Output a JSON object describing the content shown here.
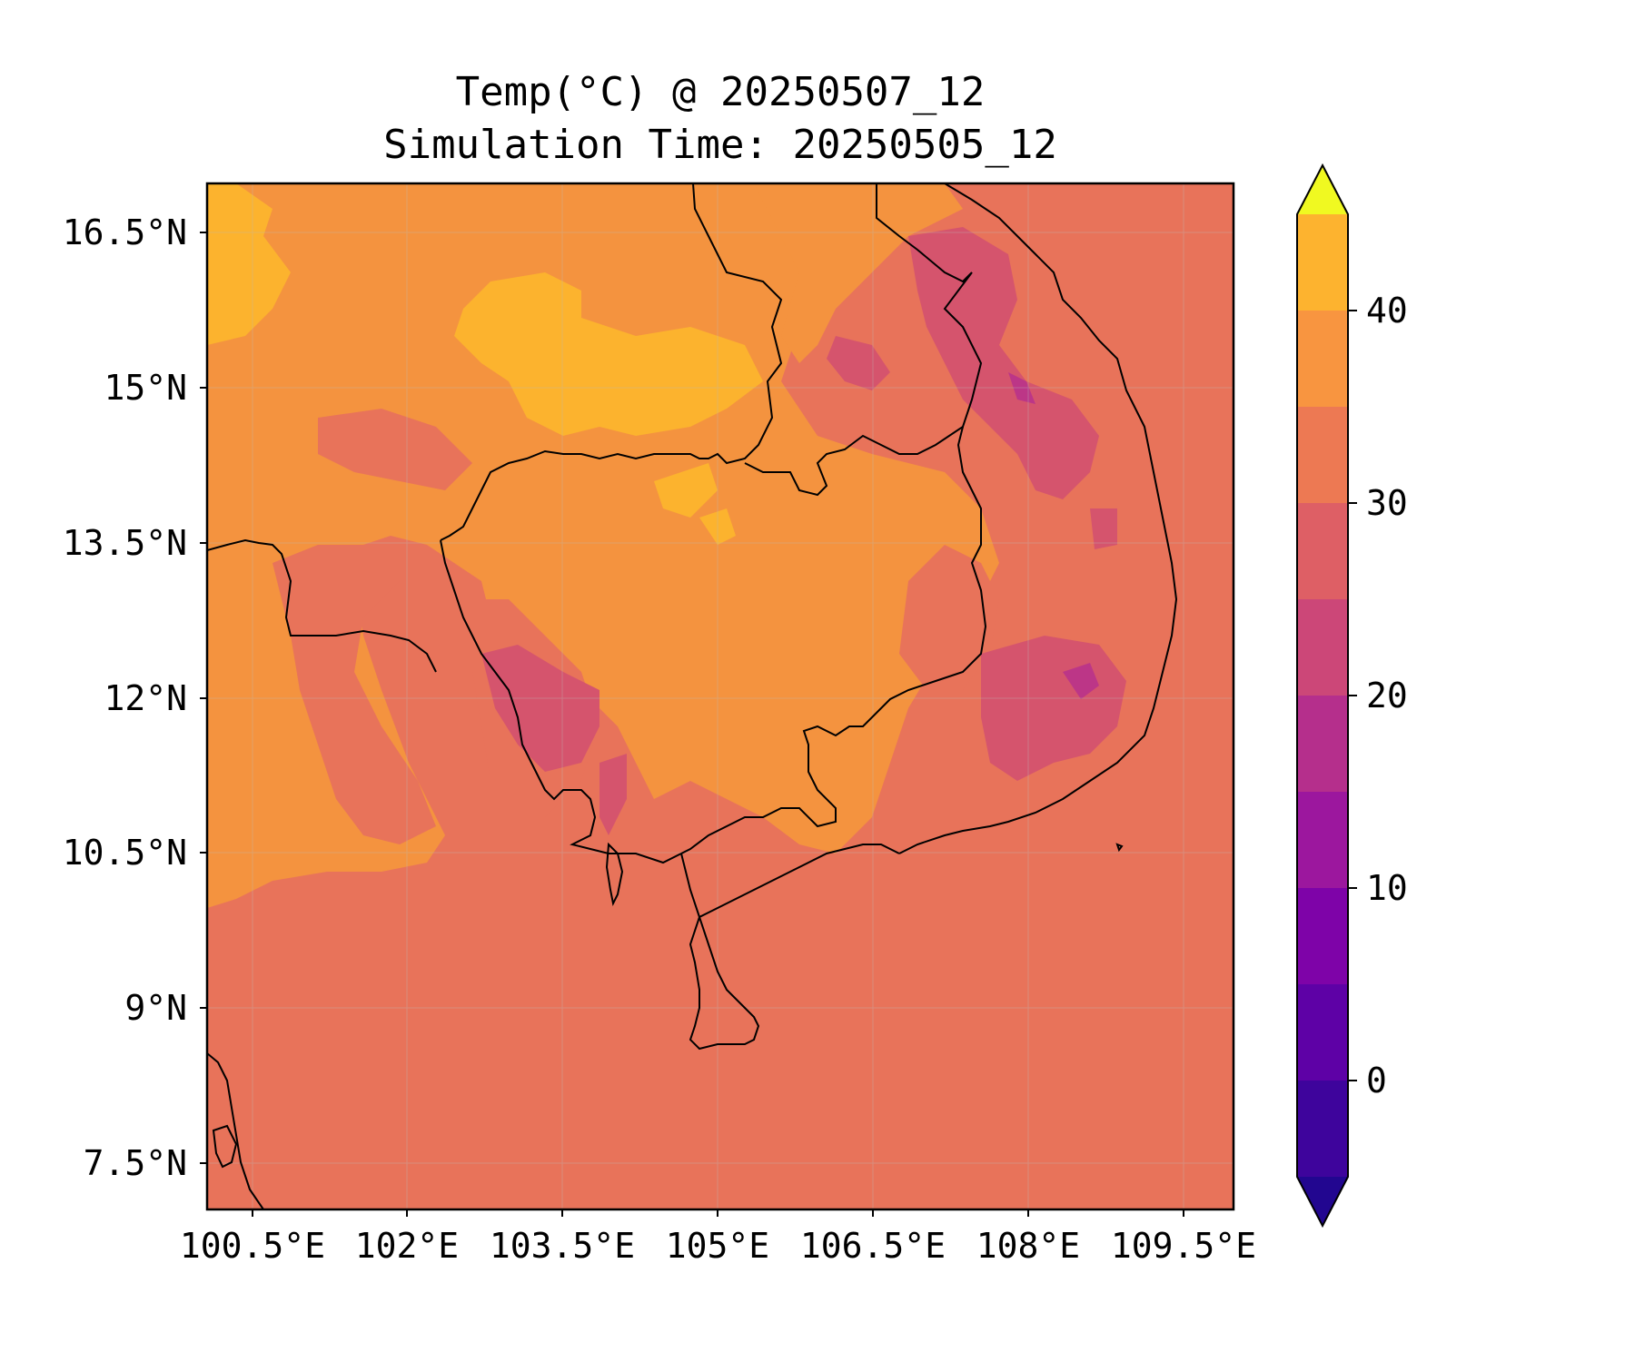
{
  "title": "Temp(°C) @ 20250507_12",
  "subtitle": "Simulation Time: 20250505_12",
  "map": {
    "lon_ticks": [
      "100.5°E",
      "102°E",
      "103.5°E",
      "105°E",
      "106.5°E",
      "108°E",
      "109.5°E"
    ],
    "lat_ticks": [
      "16.5°N",
      "15°N",
      "13.5°N",
      "12°N",
      "10.5°N",
      "9°N",
      "7.5°N"
    ],
    "lon_range": [
      100.5,
      110.4
    ],
    "lat_range": [
      7.1,
      17.0
    ],
    "dominant_colors": {
      "band_25_30": "#e8735a",
      "band_30_35": "#f4933f",
      "band_35_40": "#fcb32e",
      "band_20_25": "#d5546d",
      "band_15_20": "#bc3687"
    }
  },
  "colorbar": {
    "label_values": [
      "40",
      "30",
      "20",
      "10",
      "0"
    ],
    "levels": [
      -5,
      0,
      5,
      10,
      15,
      20,
      25,
      30,
      35,
      40,
      45
    ],
    "colors": [
      "#220690",
      "#3e049c",
      "#5e01a6",
      "#7e03a8",
      "#9c179e",
      "#b52f8c",
      "#cc4778",
      "#de5f65",
      "#ed7953",
      "#f89540",
      "#fdb32f",
      "#f0f921"
    ],
    "extend": "both"
  }
}
